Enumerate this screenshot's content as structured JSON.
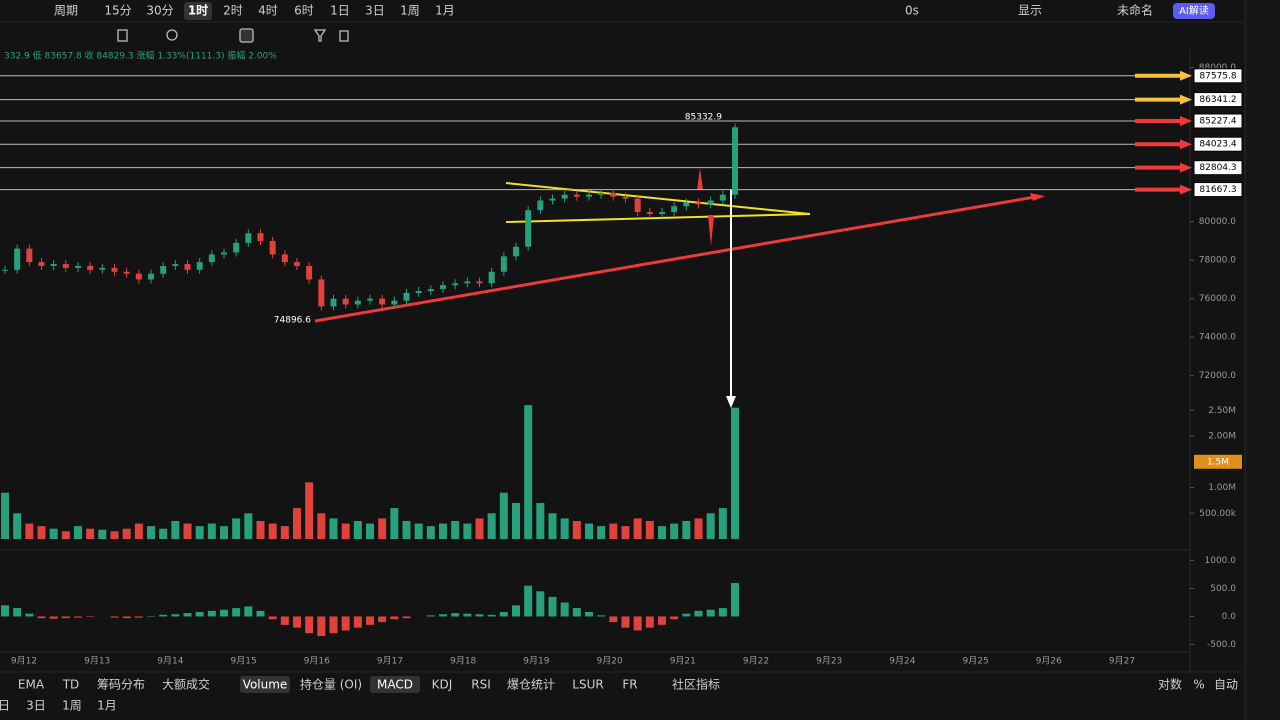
{
  "toolbar": {
    "timeframes": [
      "周期",
      "15分",
      "30分",
      "1时",
      "2时",
      "4时",
      "6时",
      "1日",
      "3日",
      "1周",
      "1月"
    ],
    "active": 3,
    "right": [
      "0s",
      "显示",
      "未命名"
    ],
    "ai": "AI解读"
  },
  "ohlc_line": "332.9 低 83657.8 收 84829.3 涨幅 1.33%(1111.3) 振幅 2.00%",
  "price_axis": {
    "ylim": [
      71000,
      88500
    ],
    "yticks": [
      {
        "value": 88000,
        "label": "88000.0"
      },
      {
        "value": 80000,
        "label": "80000.0"
      },
      {
        "value": 78000,
        "label": "78000.0"
      },
      {
        "value": 76000,
        "label": "76000.0"
      },
      {
        "value": 74000,
        "label": "74000.0"
      },
      {
        "value": 72000,
        "label": "72000.0"
      }
    ]
  },
  "levels": [
    {
      "value": 87575.8,
      "color": "#f5c242"
    },
    {
      "value": 86341.2,
      "color": "#f5c242"
    },
    {
      "value": 85227.4,
      "color": "#f03a3a"
    },
    {
      "value": 84023.4,
      "color": "#f03a3a"
    },
    {
      "value": 82804.3,
      "color": "#f03a3a"
    },
    {
      "value": 81667.3,
      "color": "#f03a3a"
    }
  ],
  "annotations": {
    "high": {
      "label": "85332.9",
      "value": 85332.9
    },
    "low": {
      "label": "74896.6",
      "value": 74896.6
    }
  },
  "candles": {
    "up_color": "#26a17b",
    "down_color": "#e0433c",
    "closes": [
      77500,
      78600,
      77900,
      77700,
      77800,
      77600,
      77700,
      77500,
      77600,
      77400,
      77300,
      77000,
      77300,
      77700,
      77800,
      77500,
      77900,
      78300,
      78400,
      78900,
      79400,
      79000,
      78300,
      77900,
      77700,
      77000,
      75600,
      76000,
      75700,
      75900,
      76000,
      75700,
      75900,
      76300,
      76400,
      76500,
      76700,
      76800,
      76900,
      76800,
      77400,
      78200,
      78700,
      80600,
      81100,
      81200,
      81400,
      81300,
      81400,
      81500,
      81300,
      81200,
      80500,
      80400,
      80500,
      80800,
      81000,
      80900,
      81100,
      81400,
      84900
    ]
  },
  "volume": {
    "ylim": [
      0,
      2700000
    ],
    "yticks": [
      {
        "value": 2500000,
        "label": "2.50M"
      },
      {
        "value": 2000000,
        "label": "2.00M"
      },
      {
        "value": 1000000,
        "label": "1.00M"
      },
      {
        "value": 500000,
        "label": "500.00k"
      }
    ],
    "ma": {
      "value": 1500000,
      "label": "1.5M"
    },
    "values": [
      900000,
      500000,
      300000,
      250000,
      200000,
      150000,
      250000,
      200000,
      180000,
      150000,
      200000,
      300000,
      250000,
      200000,
      350000,
      300000,
      250000,
      300000,
      250000,
      400000,
      500000,
      350000,
      300000,
      250000,
      600000,
      1100000,
      500000,
      400000,
      300000,
      350000,
      300000,
      400000,
      600000,
      350000,
      300000,
      250000,
      300000,
      350000,
      300000,
      400000,
      500000,
      900000,
      700000,
      2600000,
      700000,
      500000,
      400000,
      350000,
      300000,
      250000,
      300000,
      250000,
      400000,
      350000,
      250000,
      300000,
      350000,
      400000,
      500000,
      600000,
      2550000
    ]
  },
  "macd": {
    "ylim": [
      -600,
      1100
    ],
    "yticks": [
      {
        "value": 1000,
        "label": "1000.0"
      },
      {
        "value": 500,
        "label": "500.0"
      },
      {
        "value": 0,
        "label": "0.0"
      },
      {
        "value": -500,
        "label": "-500.0"
      }
    ],
    "histogram": [
      200,
      150,
      50,
      -30,
      -40,
      -30,
      -20,
      -10,
      0,
      -20,
      -30,
      -20,
      10,
      30,
      40,
      60,
      80,
      100,
      120,
      150,
      180,
      100,
      -50,
      -150,
      -200,
      -300,
      -350,
      -300,
      -250,
      -200,
      -150,
      -100,
      -50,
      -30,
      0,
      20,
      40,
      60,
      50,
      40,
      30,
      80,
      200,
      550,
      450,
      350,
      250,
      150,
      80,
      20,
      -100,
      -200,
      -250,
      -200,
      -150,
      -50,
      50,
      100,
      120,
      150,
      600
    ]
  },
  "time_axis": [
    "9月12",
    "9月13",
    "9月14",
    "9月15",
    "9月16",
    "9月17",
    "9月18",
    "9月19",
    "9月20",
    "9月21",
    "9月22",
    "9月23",
    "9月24",
    "9月25",
    "9月26",
    "9月27"
  ],
  "indicators": {
    "tabs": [
      "EMA",
      "TD",
      "筹码分布",
      "大额成交",
      "Volume",
      "持仓量 (OI)",
      "MACD",
      "KDJ",
      "RSI",
      "爆仓统计",
      "LSUR",
      "FR",
      "社区指标"
    ],
    "active": [
      4,
      6
    ],
    "right": [
      "对数",
      "%",
      "自动"
    ]
  },
  "periods": [
    "日",
    "3日",
    "1周",
    "1月"
  ]
}
